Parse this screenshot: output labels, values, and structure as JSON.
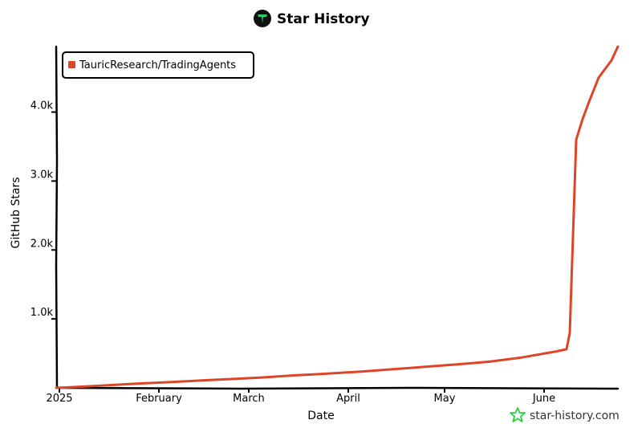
{
  "title": "Star History",
  "watermark": "star-history.com",
  "colors": {
    "series": "#dd4528",
    "axis": "#000000",
    "logo_bg": "#111111",
    "logo_accent": "#2ecc71",
    "watermark_star": "#2ecc40"
  },
  "icons": {
    "title_logo": "star-history-logo-icon",
    "watermark": "star-outline-icon"
  },
  "chart_data": {
    "type": "line",
    "title": "Star History",
    "xlabel": "Date",
    "ylabel": "GitHub Stars",
    "x_ticks": [
      "2025",
      "February",
      "March",
      "April",
      "May",
      "June"
    ],
    "y_ticks": [
      "1.0k",
      "2.0k",
      "3.0k",
      "4.0k"
    ],
    "y_tick_values": [
      1000,
      2000,
      3000,
      4000
    ],
    "ylim": [
      0,
      4950
    ],
    "xlim": [
      "2024-12-31",
      "2025-06-24"
    ],
    "grid": false,
    "legend_position": "top-left",
    "series": [
      {
        "name": "TauricResearch/TradingAgents",
        "color": "#dd4528",
        "points": [
          {
            "x": "2024-12-31",
            "y": 0
          },
          {
            "x": "2025-01-05",
            "y": 10
          },
          {
            "x": "2025-01-15",
            "y": 35
          },
          {
            "x": "2025-01-25",
            "y": 60
          },
          {
            "x": "2025-02-05",
            "y": 85
          },
          {
            "x": "2025-02-15",
            "y": 110
          },
          {
            "x": "2025-02-25",
            "y": 130
          },
          {
            "x": "2025-03-05",
            "y": 150
          },
          {
            "x": "2025-03-15",
            "y": 180
          },
          {
            "x": "2025-03-25",
            "y": 205
          },
          {
            "x": "2025-04-05",
            "y": 235
          },
          {
            "x": "2025-04-15",
            "y": 270
          },
          {
            "x": "2025-04-25",
            "y": 305
          },
          {
            "x": "2025-05-05",
            "y": 340
          },
          {
            "x": "2025-05-15",
            "y": 380
          },
          {
            "x": "2025-05-25",
            "y": 440
          },
          {
            "x": "2025-06-05",
            "y": 530
          },
          {
            "x": "2025-06-08",
            "y": 560
          },
          {
            "x": "2025-06-09",
            "y": 800
          },
          {
            "x": "2025-06-10",
            "y": 2200
          },
          {
            "x": "2025-06-11",
            "y": 3600
          },
          {
            "x": "2025-06-13",
            "y": 3900
          },
          {
            "x": "2025-06-15",
            "y": 4150
          },
          {
            "x": "2025-06-18",
            "y": 4500
          },
          {
            "x": "2025-06-22",
            "y": 4750
          },
          {
            "x": "2025-06-24",
            "y": 4950
          }
        ]
      }
    ]
  }
}
